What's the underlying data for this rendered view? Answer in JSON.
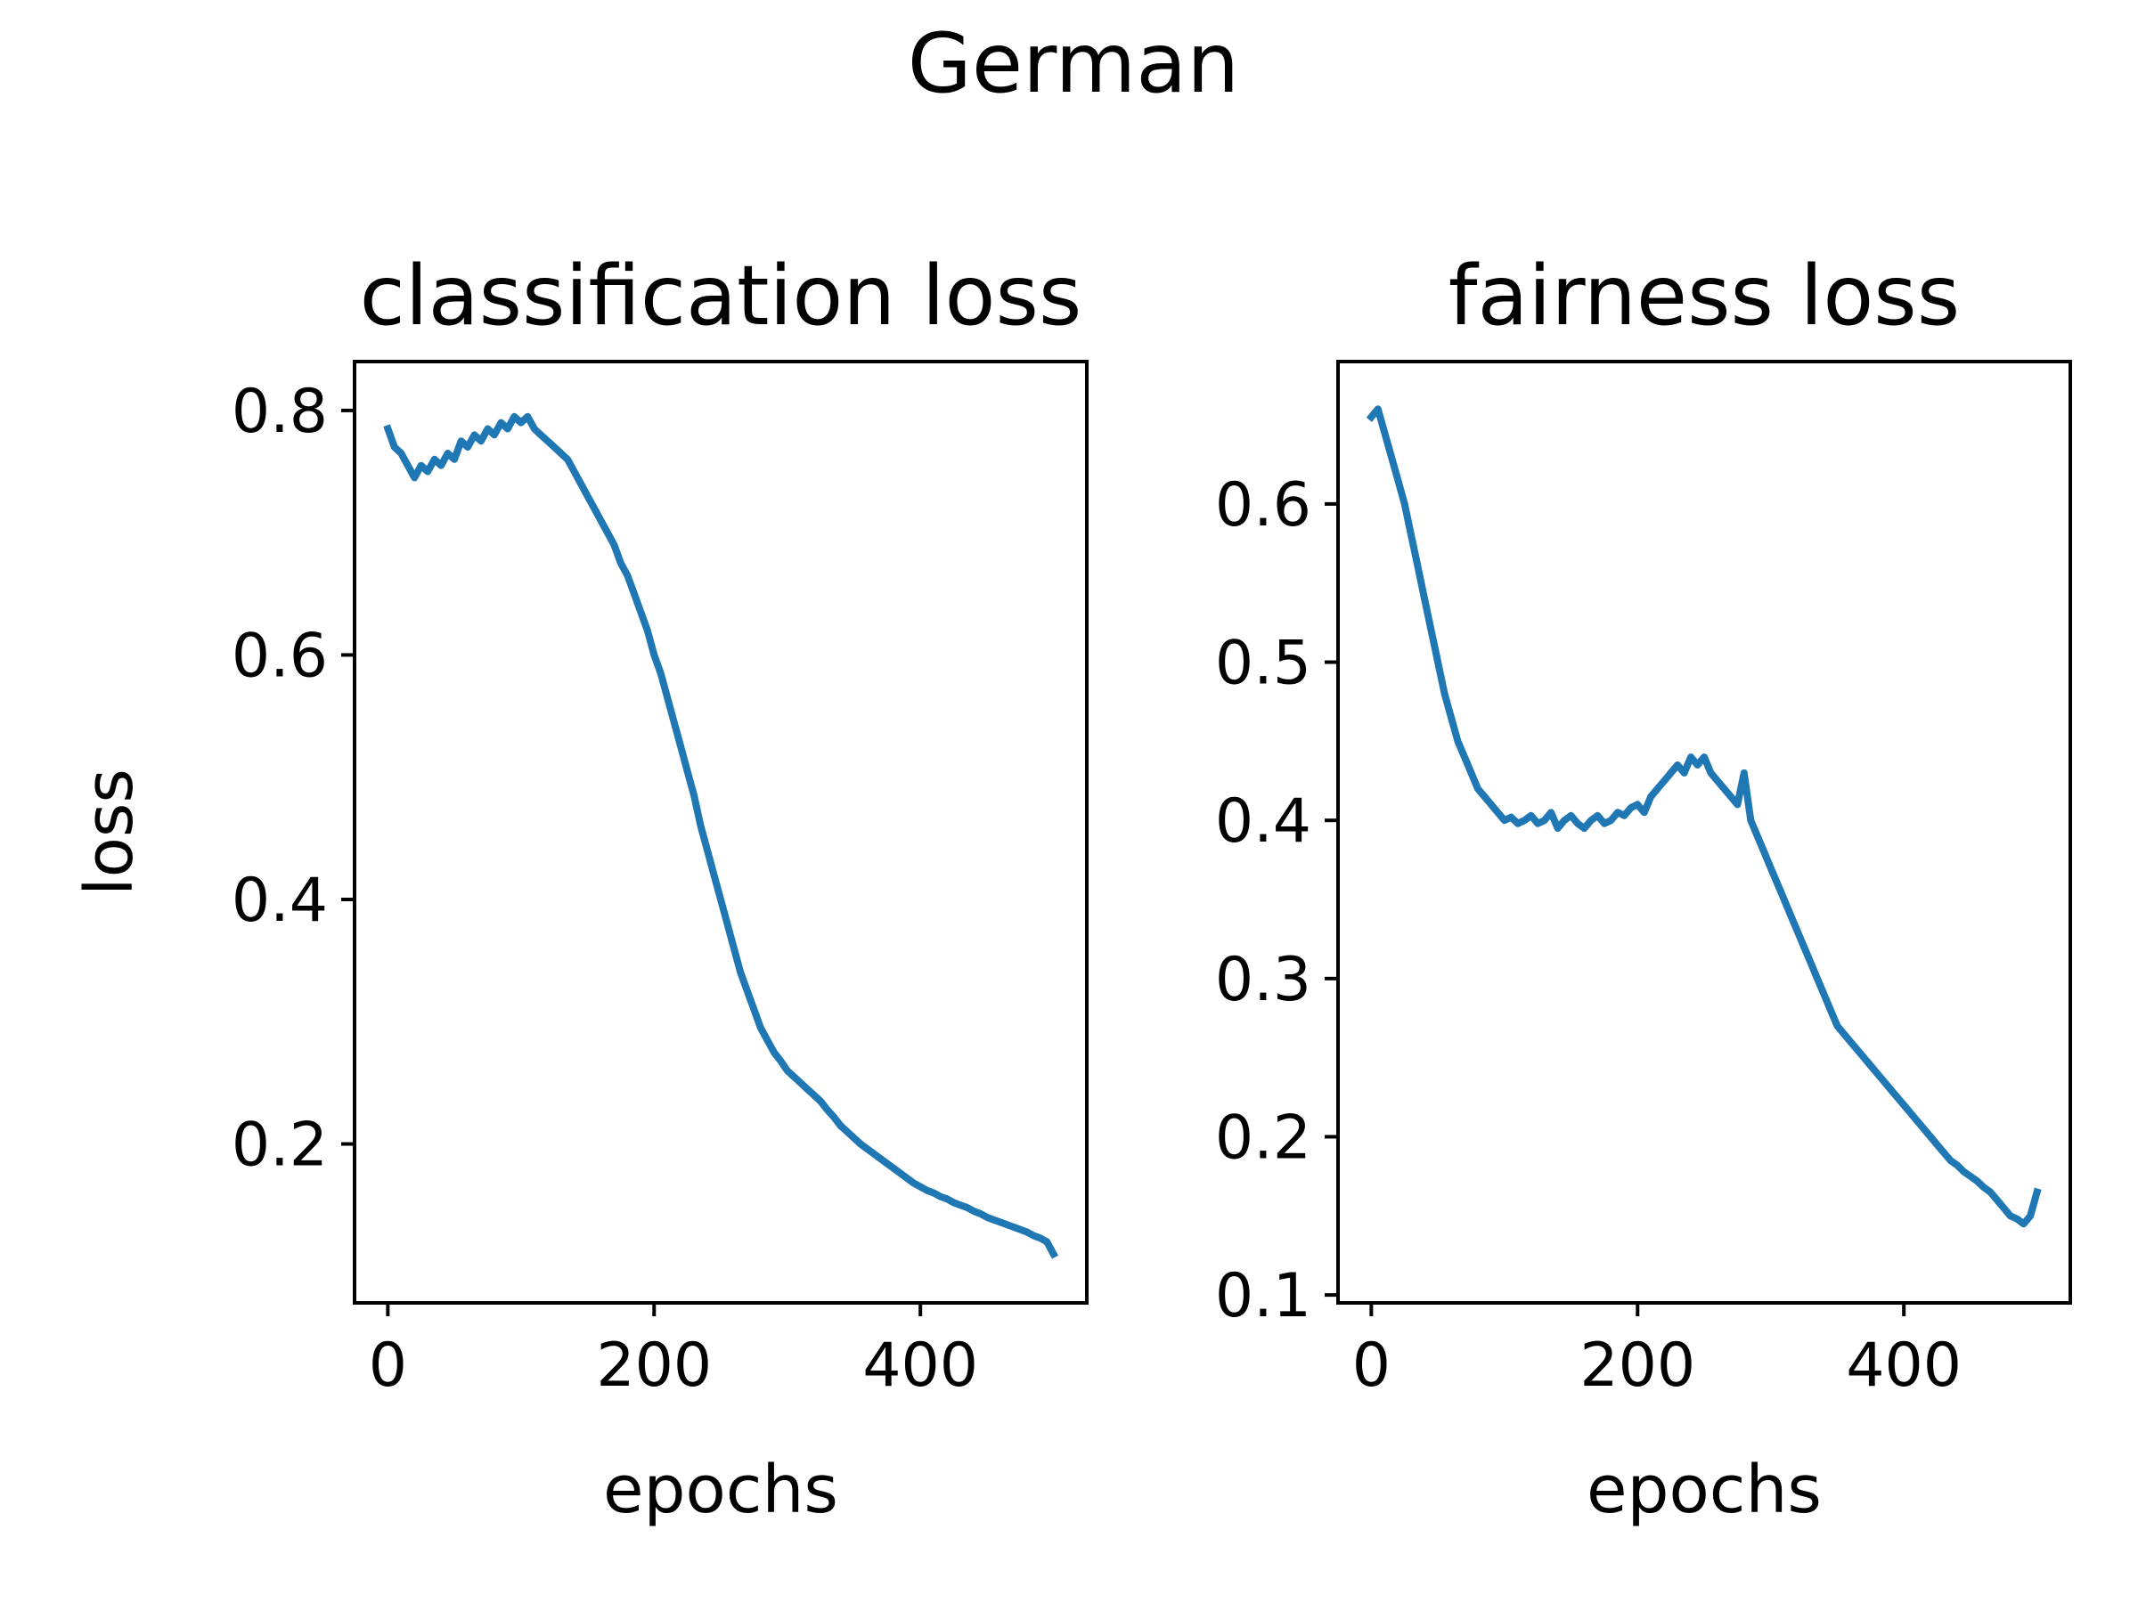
{
  "figure": {
    "suptitle": "German"
  },
  "chart_data": [
    {
      "type": "line",
      "title": "classification loss",
      "xlabel": "epochs",
      "ylabel": "loss",
      "xlim": [
        -25,
        525
      ],
      "ylim": [
        0.07,
        0.84
      ],
      "xticks": [
        0,
        200,
        400
      ],
      "xtick_labels": [
        "0",
        "200",
        "400"
      ],
      "yticks": [
        0.2,
        0.4,
        0.6,
        0.8
      ],
      "ytick_labels": [
        "0.2",
        "0.4",
        "0.6",
        "0.8"
      ],
      "grid": false,
      "series": [
        {
          "color": "#1f77b4",
          "x": [
            0,
            5,
            10,
            15,
            20,
            25,
            30,
            35,
            40,
            45,
            50,
            55,
            60,
            65,
            70,
            75,
            80,
            85,
            90,
            95,
            100,
            105,
            110,
            115,
            120,
            125,
            130,
            135,
            140,
            145,
            150,
            155,
            160,
            165,
            170,
            175,
            180,
            185,
            190,
            195,
            200,
            205,
            210,
            215,
            220,
            225,
            230,
            235,
            240,
            245,
            250,
            255,
            260,
            265,
            270,
            275,
            280,
            285,
            290,
            295,
            300,
            305,
            310,
            315,
            320,
            325,
            330,
            335,
            340,
            345,
            350,
            355,
            360,
            365,
            370,
            375,
            380,
            385,
            390,
            395,
            400,
            405,
            410,
            415,
            420,
            425,
            430,
            435,
            440,
            445,
            450,
            455,
            460,
            465,
            470,
            475,
            480,
            485,
            490,
            495,
            500
          ],
          "y": [
            0.785,
            0.77,
            0.765,
            0.755,
            0.745,
            0.755,
            0.75,
            0.76,
            0.755,
            0.765,
            0.76,
            0.775,
            0.77,
            0.78,
            0.775,
            0.785,
            0.78,
            0.79,
            0.785,
            0.795,
            0.79,
            0.795,
            0.785,
            0.78,
            0.775,
            0.77,
            0.765,
            0.76,
            0.75,
            0.74,
            0.73,
            0.72,
            0.71,
            0.7,
            0.69,
            0.675,
            0.665,
            0.65,
            0.635,
            0.62,
            0.6,
            0.585,
            0.565,
            0.545,
            0.525,
            0.505,
            0.485,
            0.46,
            0.44,
            0.42,
            0.4,
            0.38,
            0.36,
            0.34,
            0.325,
            0.31,
            0.295,
            0.285,
            0.275,
            0.268,
            0.26,
            0.255,
            0.25,
            0.245,
            0.24,
            0.235,
            0.228,
            0.222,
            0.215,
            0.21,
            0.205,
            0.2,
            0.196,
            0.192,
            0.188,
            0.184,
            0.18,
            0.176,
            0.172,
            0.168,
            0.165,
            0.162,
            0.16,
            0.157,
            0.155,
            0.152,
            0.15,
            0.148,
            0.145,
            0.143,
            0.14,
            0.138,
            0.136,
            0.134,
            0.132,
            0.13,
            0.128,
            0.125,
            0.123,
            0.12,
            0.11
          ]
        }
      ]
    },
    {
      "type": "line",
      "title": "fairness loss",
      "xlabel": "epochs",
      "ylabel": "",
      "xlim": [
        -25,
        525
      ],
      "ylim": [
        0.095,
        0.69
      ],
      "xticks": [
        0,
        200,
        400
      ],
      "xtick_labels": [
        "0",
        "200",
        "400"
      ],
      "yticks": [
        0.1,
        0.2,
        0.3,
        0.4,
        0.5,
        0.6
      ],
      "ytick_labels": [
        "0.1",
        "0.2",
        "0.3",
        "0.4",
        "0.5",
        "0.6"
      ],
      "grid": false,
      "series": [
        {
          "color": "#1f77b4",
          "x": [
            0,
            5,
            10,
            15,
            20,
            25,
            30,
            35,
            40,
            45,
            50,
            55,
            60,
            65,
            70,
            75,
            80,
            85,
            90,
            95,
            100,
            105,
            110,
            115,
            120,
            125,
            130,
            135,
            140,
            145,
            150,
            155,
            160,
            165,
            170,
            175,
            180,
            185,
            190,
            195,
            200,
            205,
            210,
            215,
            220,
            225,
            230,
            235,
            240,
            245,
            250,
            255,
            260,
            265,
            270,
            275,
            280,
            285,
            290,
            295,
            300,
            305,
            310,
            315,
            320,
            325,
            330,
            335,
            340,
            345,
            350,
            355,
            360,
            365,
            370,
            375,
            380,
            385,
            390,
            395,
            400,
            405,
            410,
            415,
            420,
            425,
            430,
            435,
            440,
            445,
            450,
            455,
            460,
            465,
            470,
            475,
            480,
            485,
            490,
            495,
            500
          ],
          "y": [
            0.655,
            0.66,
            0.645,
            0.63,
            0.615,
            0.6,
            0.58,
            0.56,
            0.54,
            0.52,
            0.5,
            0.48,
            0.465,
            0.45,
            0.44,
            0.43,
            0.42,
            0.415,
            0.41,
            0.405,
            0.4,
            0.402,
            0.398,
            0.4,
            0.403,
            0.398,
            0.4,
            0.405,
            0.395,
            0.4,
            0.403,
            0.398,
            0.395,
            0.4,
            0.403,
            0.398,
            0.4,
            0.405,
            0.403,
            0.408,
            0.41,
            0.405,
            0.415,
            0.42,
            0.425,
            0.43,
            0.435,
            0.43,
            0.44,
            0.435,
            0.44,
            0.43,
            0.425,
            0.42,
            0.415,
            0.41,
            0.43,
            0.4,
            0.39,
            0.38,
            0.37,
            0.36,
            0.35,
            0.34,
            0.33,
            0.32,
            0.31,
            0.3,
            0.29,
            0.28,
            0.27,
            0.265,
            0.26,
            0.255,
            0.25,
            0.245,
            0.24,
            0.235,
            0.23,
            0.225,
            0.22,
            0.215,
            0.21,
            0.205,
            0.2,
            0.195,
            0.19,
            0.185,
            0.182,
            0.178,
            0.175,
            0.172,
            0.168,
            0.165,
            0.16,
            0.155,
            0.15,
            0.148,
            0.145,
            0.15,
            0.165
          ]
        }
      ]
    }
  ]
}
